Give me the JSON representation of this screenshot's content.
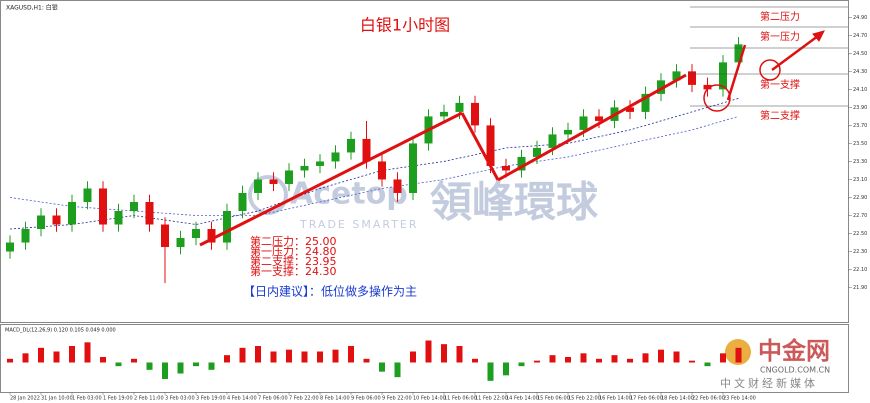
{
  "chart_data": {
    "type": "candlestick",
    "header": "XAGUSD,H1: 白银",
    "title": "白银1小时图",
    "ylim": [
      21.54,
      25.07
    ],
    "yticks": [
      {
        "value": 21.9,
        "label": "21.90"
      },
      {
        "value": 22.1,
        "label": "22.10"
      },
      {
        "value": 22.3,
        "label": "22.30"
      },
      {
        "value": 22.5,
        "label": "22.50"
      },
      {
        "value": 22.7,
        "label": "22.70"
      },
      {
        "value": 22.9,
        "label": "22.90"
      },
      {
        "value": 23.1,
        "label": "23.10"
      },
      {
        "value": 23.3,
        "label": "23.30"
      },
      {
        "value": 23.5,
        "label": "23.50"
      },
      {
        "value": 23.7,
        "label": "23.70"
      },
      {
        "value": 23.9,
        "label": "23.90"
      },
      {
        "value": 24.1,
        "label": "24.10"
      },
      {
        "value": 24.3,
        "label": "24.30"
      },
      {
        "value": 24.5,
        "label": "24.50"
      },
      {
        "value": 24.7,
        "label": "24.70"
      },
      {
        "value": 24.9,
        "label": "24.90"
      }
    ],
    "xticks": [
      {
        "value": 0,
        "label": "28 Jan 2022"
      },
      {
        "value": 2,
        "label": "31 Jan 10:00"
      },
      {
        "value": 4,
        "label": "1 Feb 03:00"
      },
      {
        "value": 6,
        "label": "1 Feb 19:00"
      },
      {
        "value": 8,
        "label": "2 Feb 11:00"
      },
      {
        "value": 10,
        "label": "3 Feb 03:00"
      },
      {
        "value": 12,
        "label": "3 Feb 19:00"
      },
      {
        "value": 14,
        "label": "4 Feb 14:00"
      },
      {
        "value": 16,
        "label": "7 Feb 06:00"
      },
      {
        "value": 18,
        "label": "7 Feb 22:00"
      },
      {
        "value": 20,
        "label": "8 Feb 14:00"
      },
      {
        "value": 22,
        "label": "9 Feb 06:00"
      },
      {
        "value": 24,
        "label": "9 Feb 22:00"
      },
      {
        "value": 26,
        "label": "10 Feb 14:00"
      },
      {
        "value": 28,
        "label": "11 Feb 06:00"
      },
      {
        "value": 30,
        "label": "11 Feb 22:00"
      },
      {
        "value": 32,
        "label": "14 Feb 14:00"
      },
      {
        "value": 34,
        "label": "15 Feb 06:00"
      },
      {
        "value": 36,
        "label": "15 Feb 22:00"
      },
      {
        "value": 38,
        "label": "16 Feb 14:00"
      },
      {
        "value": 40,
        "label": "17 Feb 06:00"
      },
      {
        "value": 42,
        "label": "18 Feb 14:00"
      },
      {
        "value": 44,
        "label": "22 Feb 06:00"
      },
      {
        "value": 46,
        "label": "23 Feb 14:00"
      }
    ],
    "up_color": "#1e9e1e",
    "down_color": "#e01010",
    "open": [
      22.3,
      22.4,
      22.55,
      22.7,
      22.6,
      22.85,
      23.0,
      22.6,
      22.75,
      22.85,
      22.6,
      22.35,
      22.45,
      22.55,
      22.4,
      22.75,
      22.95,
      23.1,
      23.05,
      23.2,
      23.25,
      23.3,
      23.4,
      23.55,
      23.3,
      23.1,
      22.95,
      23.5,
      23.8,
      23.85,
      23.95,
      23.7,
      23.25,
      23.2,
      23.35,
      23.45,
      23.6,
      23.65,
      23.8,
      23.75,
      23.9,
      23.85,
      24.05,
      24.2,
      24.3,
      24.15,
      24.1,
      24.4
    ],
    "high": [
      22.48,
      22.63,
      22.78,
      22.78,
      22.93,
      23.08,
      23.08,
      22.83,
      22.93,
      22.93,
      22.68,
      22.53,
      22.63,
      22.63,
      22.83,
      23.03,
      23.18,
      23.18,
      23.28,
      23.33,
      23.38,
      23.48,
      23.63,
      23.75,
      23.38,
      23.18,
      23.58,
      23.88,
      23.93,
      24.03,
      24.03,
      23.78,
      23.33,
      23.43,
      23.53,
      23.68,
      23.73,
      23.88,
      23.88,
      23.98,
      23.98,
      24.13,
      24.28,
      24.38,
      24.38,
      24.23,
      24.48,
      24.68
    ],
    "low": [
      22.22,
      22.32,
      22.47,
      22.52,
      22.52,
      22.77,
      22.52,
      22.52,
      22.67,
      22.52,
      21.95,
      22.27,
      22.37,
      22.32,
      22.32,
      22.67,
      22.87,
      22.97,
      22.97,
      23.12,
      23.17,
      23.22,
      23.32,
      23.22,
      23.02,
      22.85,
      22.87,
      23.42,
      23.72,
      23.77,
      23.62,
      23.17,
      23.12,
      23.12,
      23.27,
      23.37,
      23.52,
      23.57,
      23.67,
      23.67,
      23.77,
      23.77,
      23.97,
      24.12,
      24.07,
      24.02,
      24.02,
      24.32
    ],
    "close": [
      22.4,
      22.55,
      22.7,
      22.6,
      22.85,
      23.0,
      22.6,
      22.75,
      22.85,
      22.6,
      22.35,
      22.45,
      22.55,
      22.4,
      22.75,
      22.95,
      23.1,
      23.05,
      23.2,
      23.25,
      23.3,
      23.4,
      23.55,
      23.3,
      23.1,
      22.95,
      23.5,
      23.8,
      23.85,
      23.95,
      23.7,
      23.25,
      23.2,
      23.35,
      23.45,
      23.6,
      23.65,
      23.8,
      23.75,
      23.9,
      23.85,
      24.05,
      24.2,
      24.3,
      24.15,
      24.1,
      24.4,
      24.6
    ],
    "moving_averages": [
      {
        "color": "#1a2a9a",
        "x": [
          0,
          4,
          8,
          12,
          16,
          20,
          24,
          28,
          32,
          36,
          40,
          44,
          47
        ],
        "values": [
          22.55,
          22.6,
          22.7,
          22.6,
          22.75,
          23.0,
          23.2,
          23.3,
          23.45,
          23.5,
          23.65,
          23.85,
          24.0
        ]
      },
      {
        "color": "#4a5ad0",
        "x": [
          0,
          4,
          8,
          12,
          16,
          20,
          24,
          28,
          32,
          36,
          40,
          44,
          47
        ],
        "values": [
          22.9,
          22.8,
          22.75,
          22.7,
          22.7,
          22.85,
          23.0,
          23.1,
          23.25,
          23.35,
          23.5,
          23.65,
          23.8
        ]
      }
    ],
    "levels": [
      "第二压力：25.00",
      "第一压力：24.80",
      "第二支撑：23.95",
      "第一支撑：24.30"
    ],
    "level_tags": [
      "第二压力",
      "第一压力",
      "第一支撑",
      "第二支撑"
    ],
    "advice": "【日内建议】：低位做多操作为主",
    "watermark": [
      "Acetop",
      "領峰環球",
      "TRADE SMARTER"
    ],
    "macd": {
      "title": "MACD_DL(12,26,9) 0.120 0.105 0.049 0.000",
      "ylim": [
        -0.15,
        0.15
      ],
      "values": [
        0.02,
        0.05,
        0.08,
        0.06,
        0.09,
        0.11,
        0.03,
        -0.02,
        0.02,
        -0.04,
        -0.09,
        -0.06,
        -0.02,
        -0.04,
        0.04,
        0.08,
        0.09,
        0.06,
        0.07,
        0.06,
        0.06,
        0.07,
        0.09,
        0.02,
        -0.05,
        -0.08,
        0.06,
        0.12,
        0.1,
        0.09,
        0.02,
        -0.1,
        -0.07,
        -0.02,
        0.01,
        0.04,
        0.03,
        0.05,
        0.02,
        0.04,
        0.02,
        0.05,
        0.07,
        0.06,
        0.01,
        -0.02,
        0.05,
        0.08
      ]
    },
    "logo": [
      "中金网",
      "CNGOLD.COM.CN",
      "中文财经新媒体"
    ]
  }
}
